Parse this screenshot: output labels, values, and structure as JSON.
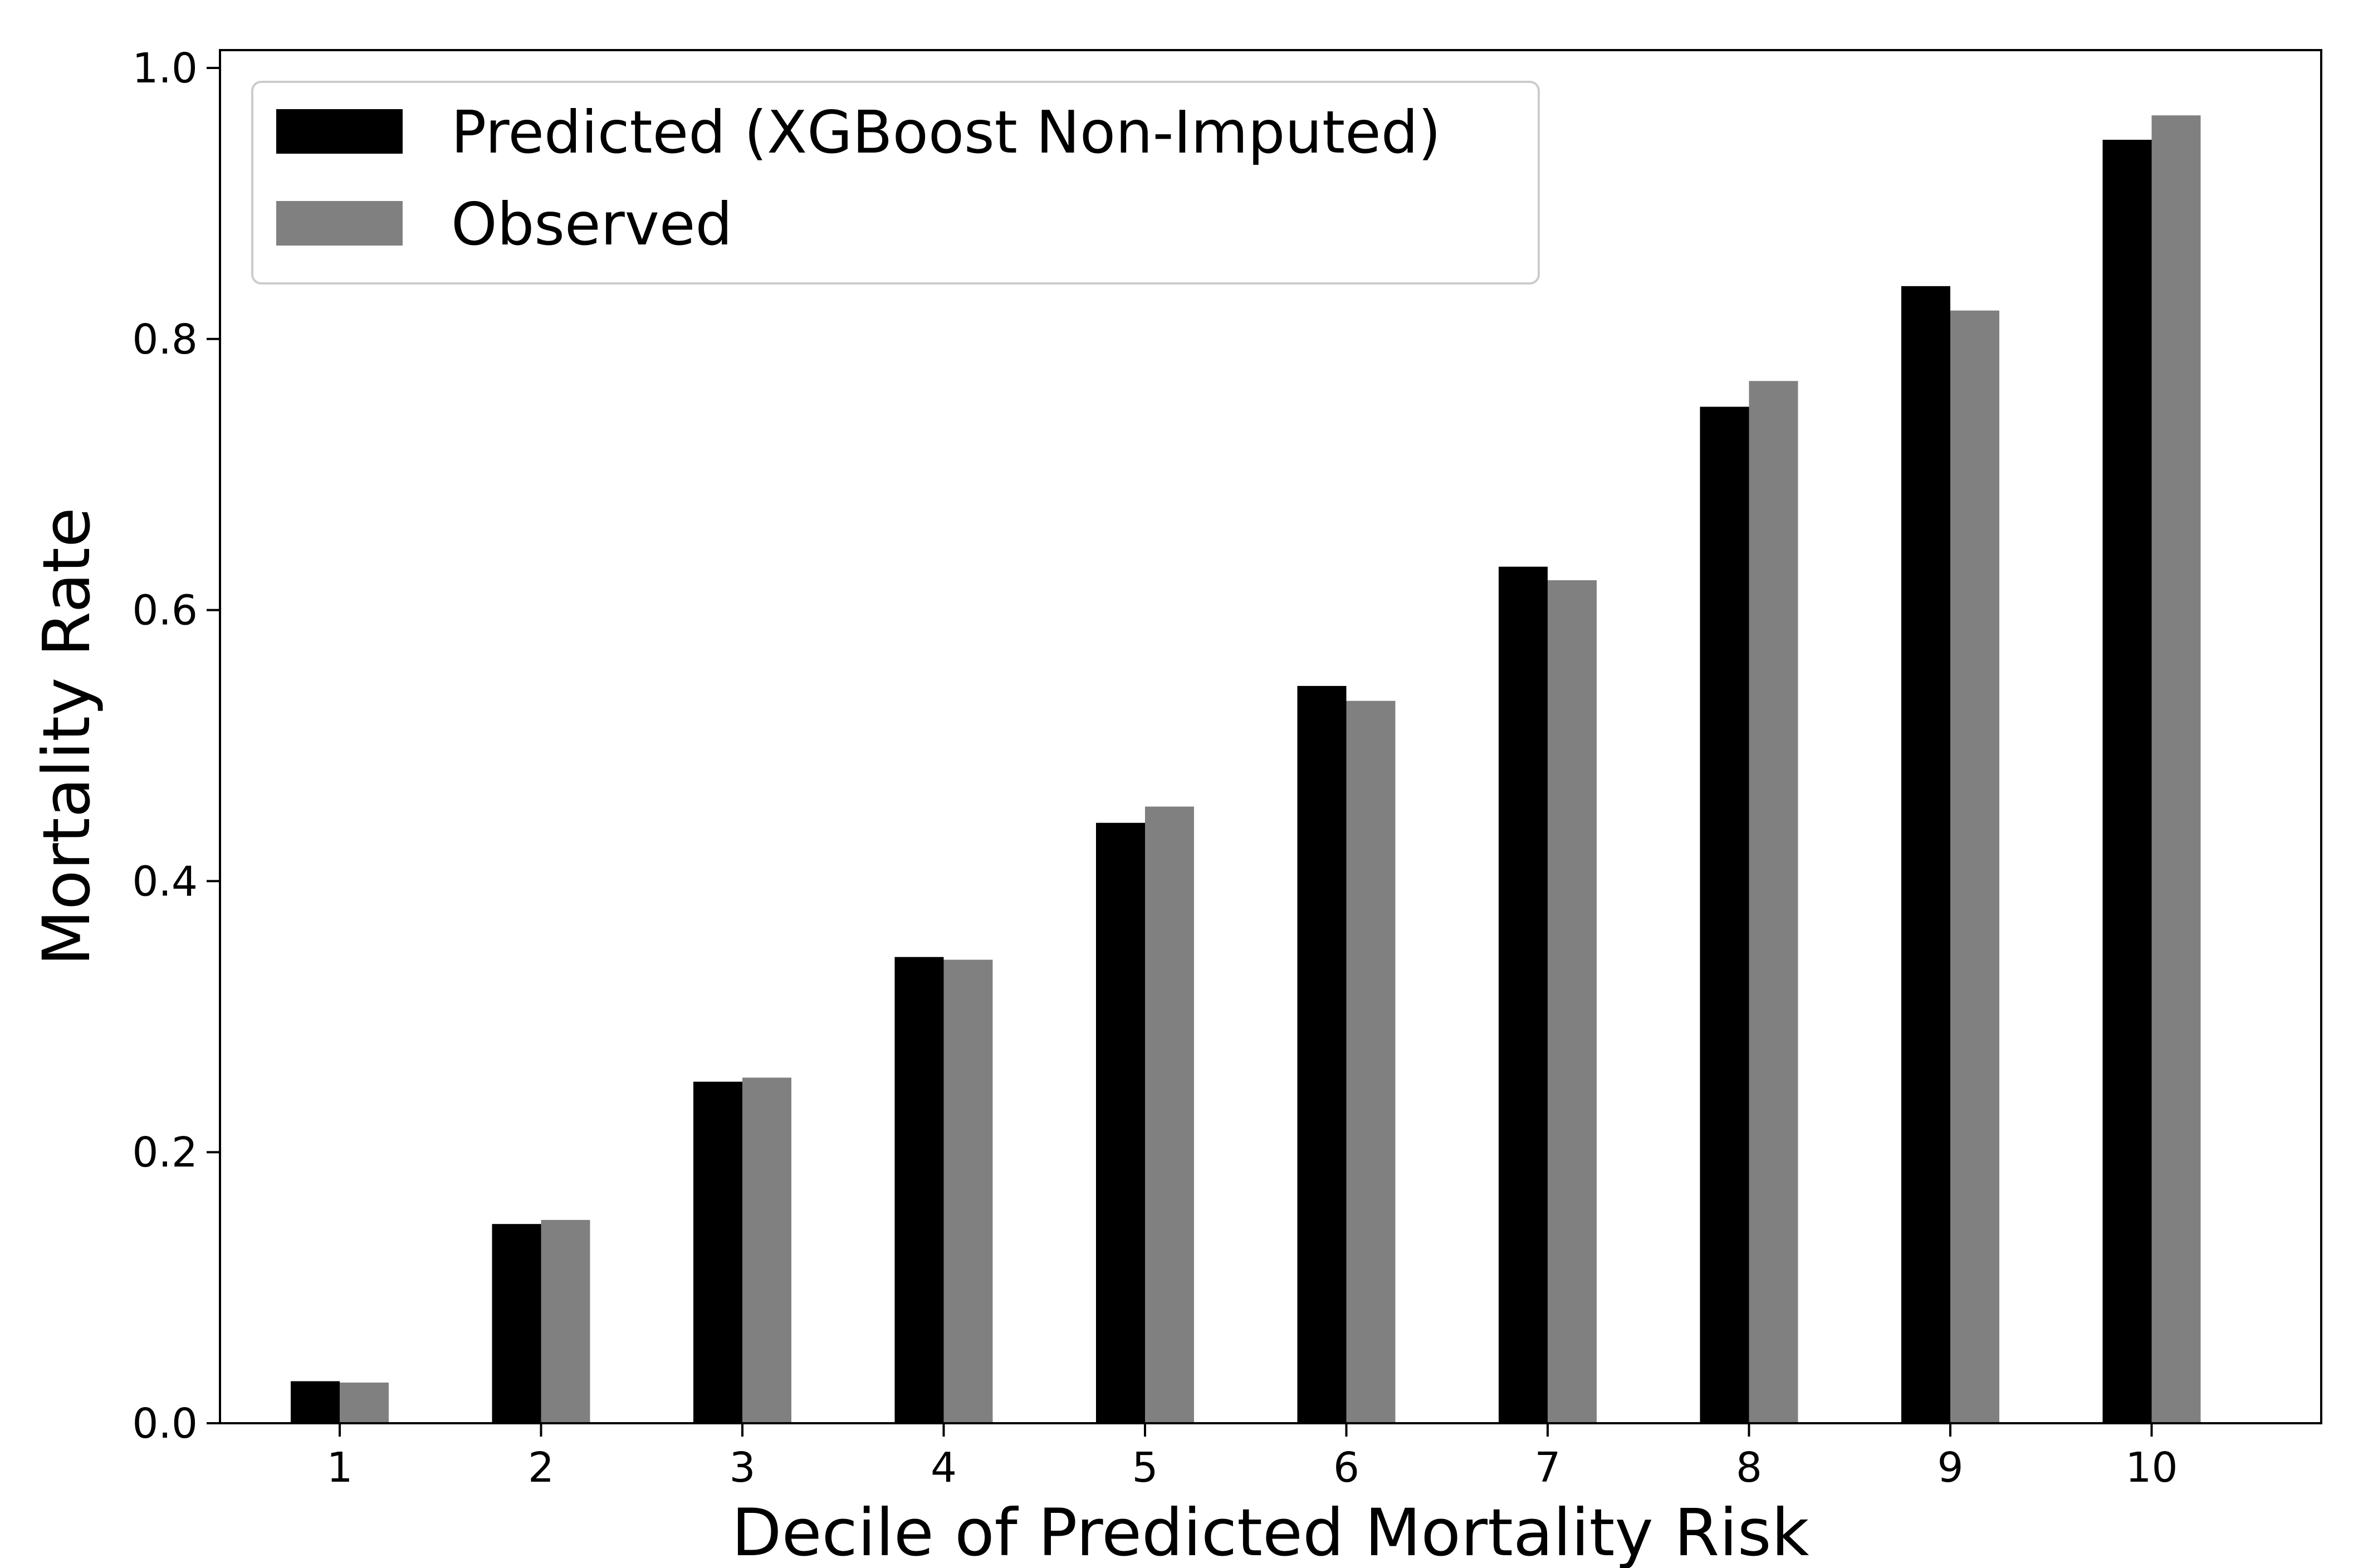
{
  "chart_data": {
    "type": "bar",
    "title": "",
    "xlabel": "Decile of Predicted Mortality Risk",
    "ylabel": "Mortality Rate",
    "categories": [
      "1",
      "2",
      "3",
      "4",
      "5",
      "6",
      "7",
      "8",
      "9",
      "10"
    ],
    "series": [
      {
        "name": "Predicted (XGBoost Non-Imputed)",
        "color": "#000000",
        "values": [
          0.031,
          0.147,
          0.252,
          0.344,
          0.443,
          0.544,
          0.632,
          0.75,
          0.839,
          0.947
        ]
      },
      {
        "name": "Observed",
        "color": "#808080",
        "values": [
          0.03,
          0.15,
          0.255,
          0.342,
          0.455,
          0.533,
          0.622,
          0.769,
          0.821,
          0.965
        ]
      }
    ],
    "ylim": [
      0.0,
      1.02
    ],
    "yticks": [
      "0.0",
      "0.2",
      "0.4",
      "0.6",
      "0.8",
      "1.0"
    ],
    "grid": false,
    "legend_position": "top-left"
  }
}
